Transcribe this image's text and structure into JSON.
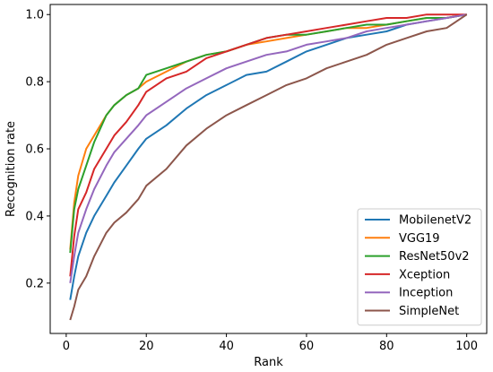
{
  "chart_data": {
    "type": "line",
    "title": "",
    "xlabel": "Rank",
    "ylabel": "Recognition rate",
    "xlim": [
      -4,
      105
    ],
    "ylim": [
      0.05,
      1.03
    ],
    "xticks": [
      0,
      20,
      40,
      60,
      80,
      100
    ],
    "yticks": [
      0.2,
      0.4,
      0.6,
      0.8,
      1.0
    ],
    "xtick_labels": [
      "0",
      "20",
      "40",
      "60",
      "80",
      "100"
    ],
    "ytick_labels": [
      "0.2",
      "0.4",
      "0.6",
      "0.8",
      "1.0"
    ],
    "grid": false,
    "legend_position": "lower-right",
    "series": [
      {
        "name": "MobilenetV2",
        "color": "#1f77b4",
        "x": [
          1,
          2,
          3,
          5,
          7,
          10,
          12,
          15,
          18,
          20,
          25,
          30,
          35,
          40,
          45,
          50,
          55,
          60,
          65,
          70,
          75,
          80,
          85,
          90,
          95,
          100
        ],
        "y": [
          0.15,
          0.22,
          0.28,
          0.35,
          0.4,
          0.46,
          0.5,
          0.55,
          0.6,
          0.63,
          0.67,
          0.72,
          0.76,
          0.79,
          0.82,
          0.83,
          0.86,
          0.89,
          0.91,
          0.93,
          0.94,
          0.95,
          0.97,
          0.98,
          0.99,
          1.0
        ]
      },
      {
        "name": "VGG19",
        "color": "#ff7f0e",
        "x": [
          1,
          2,
          3,
          5,
          7,
          10,
          12,
          15,
          18,
          20,
          25,
          30,
          35,
          40,
          45,
          50,
          55,
          60,
          65,
          70,
          75,
          80,
          85,
          90,
          95,
          100
        ],
        "y": [
          0.3,
          0.44,
          0.52,
          0.6,
          0.64,
          0.7,
          0.73,
          0.76,
          0.78,
          0.8,
          0.83,
          0.86,
          0.88,
          0.89,
          0.91,
          0.92,
          0.93,
          0.94,
          0.95,
          0.96,
          0.96,
          0.97,
          0.98,
          0.99,
          0.99,
          1.0
        ]
      },
      {
        "name": "ResNet50v2",
        "color": "#2ca02c",
        "x": [
          1,
          2,
          3,
          5,
          7,
          10,
          12,
          15,
          18,
          20,
          25,
          30,
          35,
          40,
          45,
          50,
          55,
          60,
          65,
          70,
          75,
          80,
          85,
          90,
          95,
          100
        ],
        "y": [
          0.29,
          0.42,
          0.48,
          0.55,
          0.62,
          0.7,
          0.73,
          0.76,
          0.78,
          0.82,
          0.84,
          0.86,
          0.88,
          0.89,
          0.91,
          0.93,
          0.94,
          0.94,
          0.95,
          0.96,
          0.97,
          0.97,
          0.98,
          0.99,
          0.99,
          1.0
        ]
      },
      {
        "name": "Xception",
        "color": "#d62728",
        "x": [
          1,
          2,
          3,
          5,
          7,
          10,
          12,
          15,
          18,
          20,
          25,
          30,
          35,
          40,
          45,
          50,
          55,
          60,
          65,
          70,
          75,
          80,
          85,
          90,
          95,
          100
        ],
        "y": [
          0.22,
          0.34,
          0.42,
          0.47,
          0.54,
          0.6,
          0.64,
          0.68,
          0.73,
          0.77,
          0.81,
          0.83,
          0.87,
          0.89,
          0.91,
          0.93,
          0.94,
          0.95,
          0.96,
          0.97,
          0.98,
          0.99,
          0.99,
          1.0,
          1.0,
          1.0
        ]
      },
      {
        "name": "Inception",
        "color": "#9467bd",
        "x": [
          1,
          2,
          3,
          5,
          7,
          10,
          12,
          15,
          18,
          20,
          25,
          30,
          35,
          40,
          45,
          50,
          55,
          60,
          65,
          70,
          75,
          80,
          85,
          90,
          95,
          100
        ],
        "y": [
          0.2,
          0.28,
          0.35,
          0.42,
          0.48,
          0.55,
          0.59,
          0.63,
          0.67,
          0.7,
          0.74,
          0.78,
          0.81,
          0.84,
          0.86,
          0.88,
          0.89,
          0.91,
          0.92,
          0.93,
          0.95,
          0.96,
          0.97,
          0.98,
          0.99,
          1.0
        ]
      },
      {
        "name": "SimpleNet",
        "color": "#8c564b",
        "x": [
          1,
          2,
          3,
          5,
          7,
          10,
          12,
          15,
          18,
          20,
          25,
          30,
          35,
          40,
          45,
          50,
          55,
          60,
          65,
          70,
          75,
          80,
          85,
          90,
          95,
          100
        ],
        "y": [
          0.09,
          0.13,
          0.18,
          0.22,
          0.28,
          0.35,
          0.38,
          0.41,
          0.45,
          0.49,
          0.54,
          0.61,
          0.66,
          0.7,
          0.73,
          0.76,
          0.79,
          0.81,
          0.84,
          0.86,
          0.88,
          0.91,
          0.93,
          0.95,
          0.96,
          1.0
        ]
      }
    ]
  }
}
